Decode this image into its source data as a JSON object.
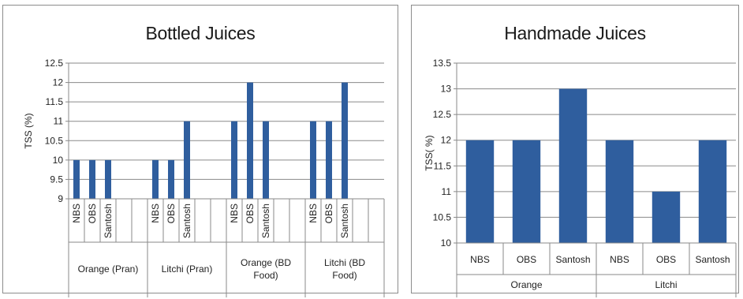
{
  "chart_data": [
    {
      "type": "bar",
      "title": "Bottled Juices",
      "ylabel": "TSS (%)",
      "xlabel": "",
      "ylim": [
        9,
        12.5
      ],
      "ytick_step": 0.5,
      "yticks": [
        "9",
        "9.5",
        "10",
        "10.5",
        "11",
        "11.5",
        "12",
        "12.5"
      ],
      "groups": [
        {
          "label": "Orange (Pran)",
          "categories": [
            "NBS",
            "OBS",
            "Santosh"
          ],
          "values": [
            10,
            10,
            10
          ]
        },
        {
          "label": "Litchi (Pran)",
          "categories": [
            "NBS",
            "OBS",
            "Santosh"
          ],
          "values": [
            10,
            10,
            11
          ]
        },
        {
          "label": "Orange (BD Food)",
          "categories": [
            "NBS",
            "OBS",
            "Santosh"
          ],
          "values": [
            11,
            12,
            11
          ]
        },
        {
          "label": "Litchi (BD Food)",
          "categories": [
            "NBS",
            "OBS",
            "Santosh"
          ],
          "values": [
            11,
            11,
            12
          ]
        }
      ],
      "grid": true,
      "bar_color": "#2f5e9e"
    },
    {
      "type": "bar",
      "title": "Handmade Juices",
      "ylabel": "TSS( %)",
      "xlabel": "",
      "ylim": [
        10,
        13.5
      ],
      "ytick_step": 0.5,
      "yticks": [
        "10",
        "10.5",
        "11",
        "11.5",
        "12",
        "12.5",
        "13",
        "13.5"
      ],
      "groups": [
        {
          "label": "Orange",
          "categories": [
            "NBS",
            "OBS",
            "Santosh"
          ],
          "values": [
            12,
            12,
            13
          ]
        },
        {
          "label": "Litchi",
          "categories": [
            "NBS",
            "OBS",
            "Santosh"
          ],
          "values": [
            12,
            11,
            12
          ]
        }
      ],
      "grid": true,
      "bar_color": "#2f5e9e"
    }
  ]
}
